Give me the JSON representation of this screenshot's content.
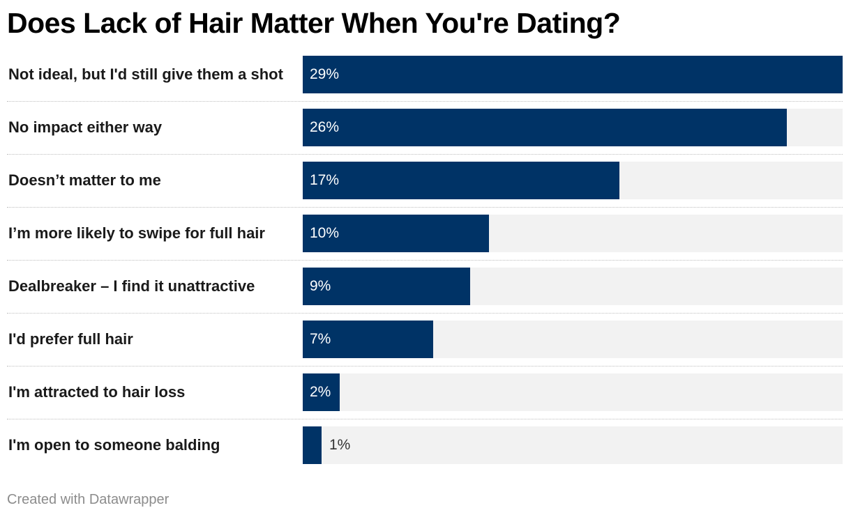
{
  "title": "Does Lack of Hair Matter When You're Dating?",
  "footer": "Created with Datawrapper",
  "colors": {
    "bar": "#003366",
    "track": "#f2f2f2"
  },
  "chart_data": {
    "type": "bar",
    "orientation": "horizontal",
    "title": "Does Lack of Hair Matter When You're Dating?",
    "categories": [
      "Not ideal, but I'd still give them a shot",
      "No impact either way",
      "Doesn’t matter to me",
      "I’m more likely to swipe for full hair",
      "Dealbreaker – I find it unattractive",
      "I'd prefer full hair",
      "I'm attracted to hair loss",
      "I'm open to someone balding"
    ],
    "values": [
      29,
      26,
      17,
      10,
      9,
      7,
      2,
      1
    ],
    "value_labels": [
      "29%",
      "26%",
      "17%",
      "10%",
      "9%",
      "7%",
      "2%",
      "1%"
    ],
    "xlim": [
      0,
      29
    ],
    "grid": false
  }
}
